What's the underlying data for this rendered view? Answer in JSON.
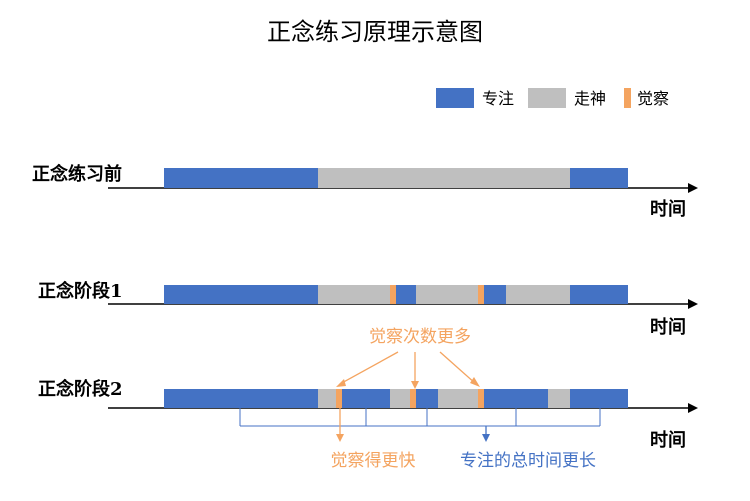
{
  "title": "正念练习原理示意图",
  "legend": [
    {
      "label": "专注",
      "color": "#4472C4"
    },
    {
      "label": "走神",
      "color": "#BFBFBF"
    },
    {
      "label": "觉察",
      "color": "#F4A460"
    }
  ],
  "axis_label": "时间",
  "rows": [
    {
      "label": "正念练习前"
    },
    {
      "label": "正念阶段1"
    },
    {
      "label": "正念阶段2"
    }
  ],
  "annotations": {
    "more_awareness": "觉察次数更多",
    "faster_awareness": "觉察得更快",
    "longer_focus": "专注的总时间更长"
  },
  "colors": {
    "focus": "#4472C4",
    "wander": "#BFBFBF",
    "aware": "#F4A460",
    "axis": "#000000",
    "bracket": "#4472C4",
    "annotation_orange": "#F4A460",
    "annotation_blue": "#4472C4"
  }
}
